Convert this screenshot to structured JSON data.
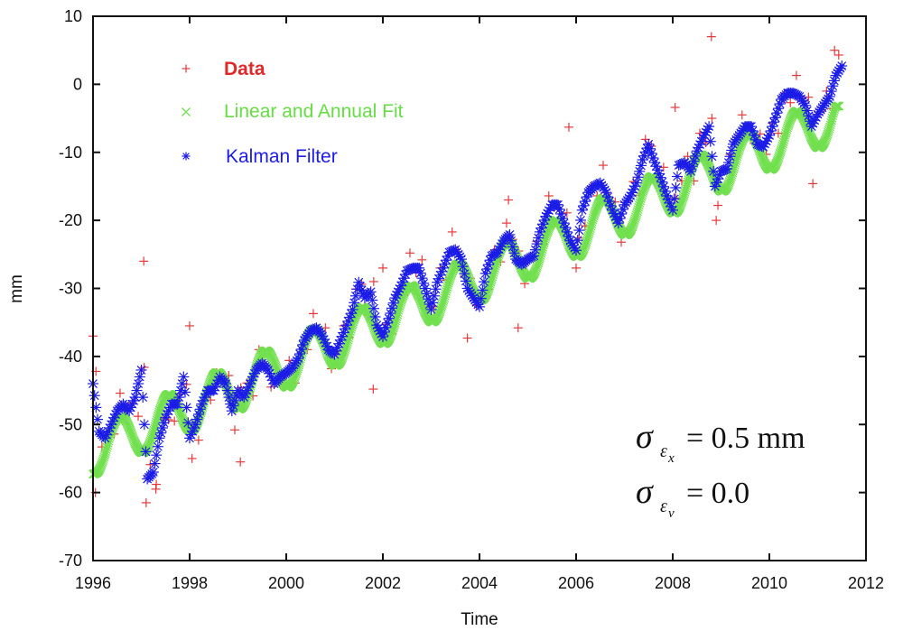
{
  "chart_data": {
    "type": "scatter",
    "title": "",
    "xlabel": "Time",
    "ylabel": "mm",
    "xlim": [
      1996,
      2012
    ],
    "ylim": [
      -70,
      10
    ],
    "xticks": [
      "1996",
      "1998",
      "2000",
      "2002",
      "2004",
      "2006",
      "2008",
      "2010",
      "2012"
    ],
    "yticks": [
      "10",
      "0",
      "-10",
      "-20",
      "-30",
      "-40",
      "-50",
      "-60",
      "-70"
    ],
    "grid": false,
    "legend_position": "top-left",
    "series": [
      {
        "name": "Data",
        "marker": "plus",
        "color": "#e8393a",
        "x_start": 1996.06,
        "x_step": 0.125,
        "values": [
          -42.2,
          -53.3,
          -51.1,
          -51.4,
          -45.4,
          -47.7,
          -46.8,
          -48.8,
          -41.6,
          -55.9,
          -58.8,
          -49,
          -49.3,
          -49.5,
          -45.5,
          -44.1,
          -50.2,
          -52.3,
          -46.1,
          -46.4,
          -42.4,
          -43.7,
          -42.8,
          -50.8,
          -44.6,
          -43.9,
          -45.8,
          -39,
          -41.3,
          -44.5,
          -42.5,
          -44.1,
          -40.6,
          -43.9,
          -39.4,
          -39,
          -33.7,
          -36.5,
          -35.8,
          -41.8,
          -39.3,
          -35.5,
          -37.2,
          -30.1,
          -29.4,
          -33.9,
          -29,
          -36.5,
          -35.3,
          -36.7,
          -30.5,
          -31,
          -24.8,
          -27.7,
          -25.8,
          -32.8,
          -32.7,
          -27,
          -28.8,
          -21.7,
          -24.6,
          -28.2,
          -28.5,
          -32.5,
          -30.9,
          -30.1,
          -24.3,
          -26.1,
          -20.4,
          -22.8,
          -24.5,
          -29.3,
          -25.3,
          -23.1,
          -23.5,
          -16.4,
          -18,
          -20.2,
          -18.9,
          -24.1,
          -22.6,
          -20.8,
          -15,
          -16.4,
          -11.9,
          -16.6,
          -17.3,
          -23.2,
          -17.3,
          -14.3,
          -16.3,
          -8.1,
          -9.1,
          -14,
          -12.2,
          -17.5,
          -16.7,
          -14.2,
          -10.6,
          -14.2,
          -7.2,
          -8.6,
          -5,
          -17.8,
          -12.4,
          -10.3,
          -10.6,
          -4.5,
          -6.5,
          -8.7,
          -7.3,
          -10.3,
          -5.7,
          -7.2,
          -1.3,
          -2.7,
          1.3,
          -2.5,
          -1.9,
          -9,
          -4,
          -1,
          -3.6,
          4.3
        ],
        "extra_points": [
          [
            1996.0,
            -37
          ],
          [
            1996.05,
            -60
          ],
          [
            1997.05,
            -26
          ],
          [
            1997.1,
            -61.5
          ],
          [
            1997.3,
            -59.5
          ],
          [
            1998.0,
            -35.5
          ],
          [
            1998.05,
            -55
          ],
          [
            1999.05,
            -55.5
          ],
          [
            2001.8,
            -44.8
          ],
          [
            2002.0,
            -27
          ],
          [
            2003.75,
            -37.3
          ],
          [
            2004.6,
            -17
          ],
          [
            2004.8,
            -35.8
          ],
          [
            2005.85,
            -6.3
          ],
          [
            2006.0,
            -27
          ],
          [
            2008.05,
            -3.4
          ],
          [
            2008.8,
            7
          ],
          [
            2008.9,
            -20
          ],
          [
            2010.9,
            -14.6
          ],
          [
            2011.35,
            5
          ]
        ]
      },
      {
        "name": "Linear and Annual Fit",
        "marker": "x",
        "color": "#72e04f",
        "x_start": 1996.0,
        "x_step": 0.125,
        "values": [
          -57.3,
          -56.7,
          -54.3,
          -51.2,
          -49.1,
          -48.9,
          -50.5,
          -52.8,
          -54.1,
          -53.5,
          -51.1,
          -48.0,
          -45.9,
          -45.7,
          -47.3,
          -49.6,
          -50.9,
          -50.3,
          -47.9,
          -44.8,
          -42.7,
          -42.5,
          -44.1,
          -46.4,
          -47.7,
          -47.1,
          -44.7,
          -41.6,
          -39.5,
          -39.3,
          -40.9,
          -43.2,
          -44.5,
          -43.9,
          -41.5,
          -38.4,
          -36.3,
          -36.1,
          -37.7,
          -40.0,
          -41.3,
          -40.7,
          -38.3,
          -35.2,
          -33.1,
          -32.9,
          -34.5,
          -36.8,
          -38.1,
          -37.5,
          -35.1,
          -32.0,
          -29.9,
          -29.7,
          -31.3,
          -33.6,
          -34.9,
          -34.3,
          -31.9,
          -28.8,
          -26.7,
          -26.5,
          -28.1,
          -30.4,
          -31.7,
          -31.1,
          -28.7,
          -25.6,
          -23.5,
          -23.3,
          -24.9,
          -27.2,
          -28.5,
          -27.9,
          -25.5,
          -22.4,
          -20.3,
          -20.1,
          -21.7,
          -24.0,
          -25.3,
          -24.7,
          -22.3,
          -19.2,
          -17.1,
          -16.9,
          -18.5,
          -20.8,
          -22.1,
          -21.5,
          -19.1,
          -16.0,
          -13.9,
          -13.7,
          -15.3,
          -17.6,
          -18.9,
          -18.3,
          -15.9,
          -12.8,
          -10.7,
          -10.5,
          -12.1,
          -14.4,
          -15.7,
          -15.1,
          -12.7,
          -9.6,
          -7.5,
          -7.3,
          -8.9,
          -11.2,
          -12.5,
          -11.9,
          -9.5,
          -6.4,
          -4.3,
          -4.1,
          -5.7,
          -8.0,
          -9.3,
          -8.7,
          -6.3,
          -3.2
        ]
      },
      {
        "name": "Kalman Filter",
        "marker": "asterisk",
        "color": "#1c1ce8",
        "x_start": 1996.0,
        "x_step": 0.125,
        "values": [
          -44,
          -51,
          -52,
          -50,
          -48,
          -47,
          -48,
          -46,
          -42,
          -58,
          -57,
          -52,
          -49,
          -47,
          -47,
          -43,
          -52,
          -50,
          -47,
          -45,
          -45,
          -43,
          -44,
          -48,
          -45,
          -46,
          -44,
          -42,
          -41,
          -42,
          -44,
          -43,
          -42.4,
          -41.6,
          -40.3,
          -37.6,
          -36.3,
          -35.8,
          -37,
          -39,
          -39.7,
          -37.6,
          -35.4,
          -33.1,
          -29.1,
          -31.4,
          -30.5,
          -35.4,
          -37.1,
          -34.4,
          -31.4,
          -29.6,
          -27.4,
          -27,
          -27,
          -30,
          -33.1,
          -29.1,
          -27,
          -24.7,
          -24.3,
          -25.7,
          -30,
          -31.4,
          -32.7,
          -27.8,
          -25.2,
          -24.7,
          -23,
          -22.1,
          -25.7,
          -26.5,
          -25.7,
          -25.2,
          -21.7,
          -19.4,
          -17.7,
          -17.7,
          -20.4,
          -23,
          -24.4,
          -18.5,
          -15.9,
          -15,
          -14.5,
          -15.9,
          -18.5,
          -20.4,
          -17.7,
          -16.4,
          -14.5,
          -11.1,
          -8.8,
          -11.5,
          -13.7,
          -16.4,
          -18.5,
          -11.9,
          -11.5,
          -12.8,
          -9.8,
          -7.9,
          -6.2,
          -15,
          -12.8,
          -12.4,
          -8.8,
          -7.5,
          -6.2,
          -6.2,
          -8.8,
          -9.2,
          -7.5,
          -4.9,
          -2.2,
          -1.3,
          -1.3,
          -1.8,
          -3.1,
          -6.2,
          -4.4,
          -3.1,
          -1.8,
          1.3,
          2.7
        ]
      }
    ],
    "annotations": [
      {
        "symbol": "σ",
        "sub": "ε",
        "subsub": "x",
        "rhs": "= 0.5 mm"
      },
      {
        "symbol": "σ",
        "sub": "ε",
        "subsub": "v",
        "rhs": "= 0.0"
      }
    ]
  }
}
